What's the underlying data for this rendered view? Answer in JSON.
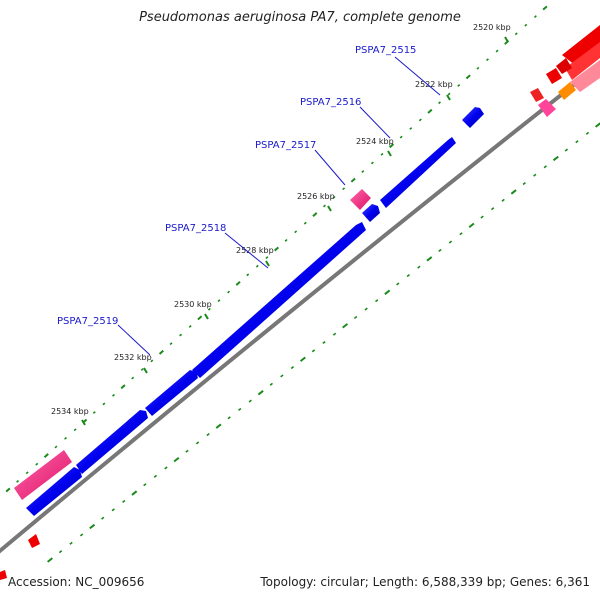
{
  "title": "Pseudomonas aeruginosa PA7, complete genome",
  "footer": {
    "accession": "Accession: NC_009656",
    "topology": "Topology: circular; Length: 6,588,339 bp; Genes: 6,361"
  },
  "tick_labels": [
    "2520 kbp",
    "2522 kbp",
    "2524 kbp",
    "2526 kbp",
    "2528 kbp",
    "2530 kbp",
    "2532 kbp",
    "2534 kbp"
  ],
  "gene_labels": [
    "PSPA7_2515",
    "PSPA7_2516",
    "PSPA7_2517",
    "PSPA7_2518",
    "PSPA7_2519"
  ],
  "colors": {
    "cds_forward": "#0000ee",
    "gene_highlight": "#ee2277",
    "backbone": "#777777",
    "gc_ticks": "#1a8a1a",
    "other_feature_red": "#ee0000",
    "other_feature_orange": "#ff8c00",
    "other_feature_pink": "#ff7799"
  }
}
